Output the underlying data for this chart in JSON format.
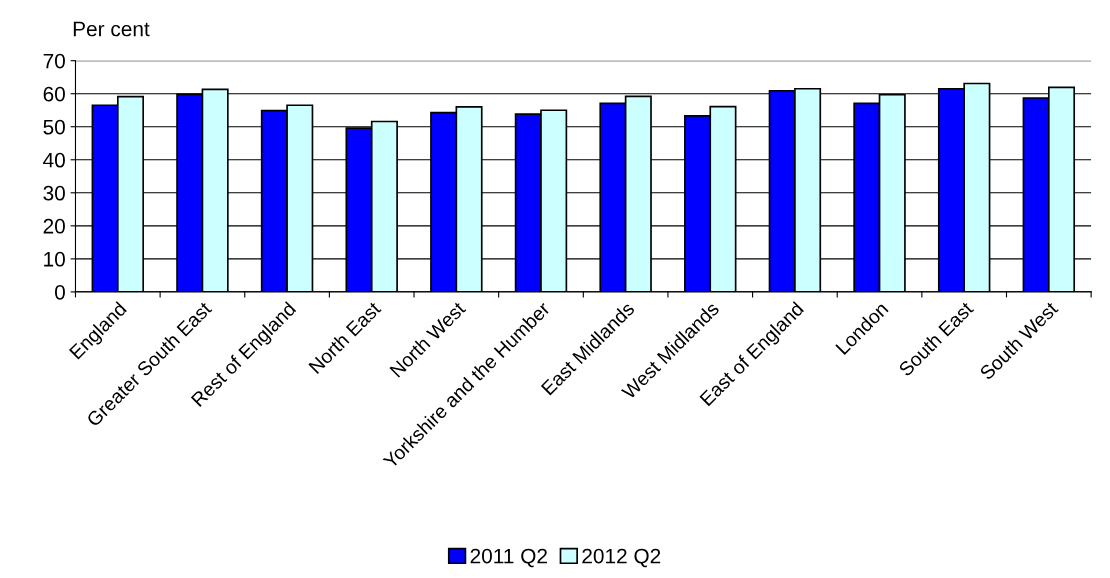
{
  "chart_data": {
    "type": "bar",
    "ylabel": "Per cent",
    "categories": [
      "England",
      "Greater South East",
      "Rest of England",
      "North East",
      "North West",
      "Yorkshire and the Humber",
      "East Midlands",
      "West Midlands",
      "East of England",
      "London",
      "South East",
      "South West"
    ],
    "series": [
      {
        "name": "2011 Q2",
        "color": "#0000ff",
        "values": [
          56.5,
          59.8,
          54.9,
          49.6,
          54.3,
          53.8,
          57.1,
          53.3,
          60.9,
          57.1,
          61.5,
          58.7
        ]
      },
      {
        "name": "2012 Q2",
        "color": "#ccffff",
        "values": [
          59.1,
          61.3,
          56.5,
          51.6,
          56.0,
          55.0,
          59.2,
          56.1,
          61.5,
          59.7,
          63.1,
          61.9
        ]
      }
    ],
    "ylim": [
      0,
      70
    ],
    "yticks": [
      0,
      10,
      20,
      30,
      40,
      50,
      60,
      70
    ],
    "grid": "y",
    "legend": "bottom"
  }
}
